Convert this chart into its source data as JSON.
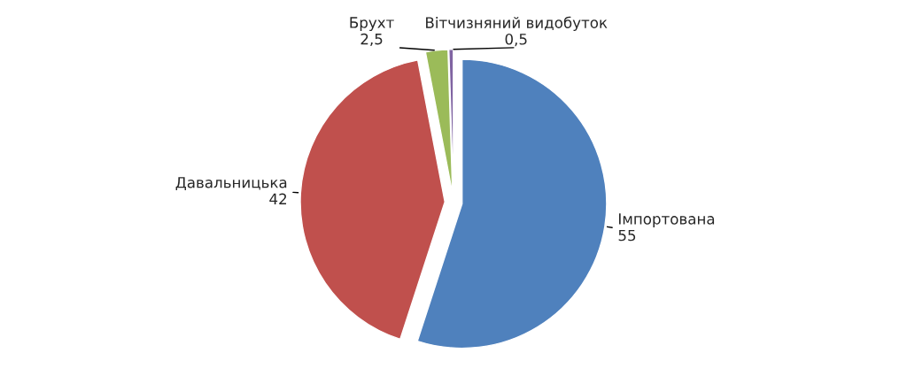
{
  "chart_data": {
    "type": "pie",
    "categories": [
      "Імпортована",
      "Давальницька",
      "Брухт",
      "Вітчизняний видобуток"
    ],
    "values": [
      55,
      42,
      2.5,
      0.5
    ],
    "value_labels": [
      "55",
      "42",
      "2,5",
      "0,5"
    ],
    "colors": [
      "#4f81bd",
      "#c0504d",
      "#9bbb59",
      "#8064a2"
    ],
    "legend": false
  }
}
